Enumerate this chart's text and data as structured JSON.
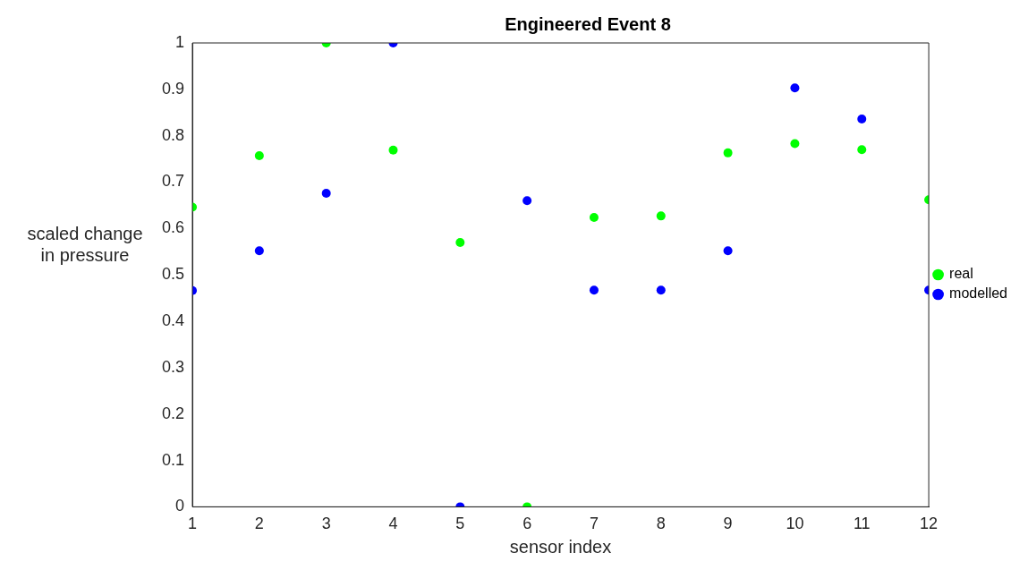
{
  "chart_data": {
    "type": "scatter",
    "title": "Engineered Event 8",
    "xlabel": "sensor index",
    "ylabel": "scaled change in pressure",
    "x": [
      1,
      2,
      3,
      4,
      5,
      6,
      7,
      8,
      9,
      10,
      11,
      12
    ],
    "series": [
      {
        "name": "real",
        "color": "#00ff00",
        "values": [
          0.646,
          0.757,
          1,
          0.769,
          0.57,
          0,
          0.624,
          0.627,
          0.763,
          0.783,
          0.77,
          0.662
        ]
      },
      {
        "name": "modelled",
        "color": "#0000ff",
        "values": [
          0.466,
          0.552,
          0.676,
          1,
          0,
          0.66,
          0.467,
          0.467,
          0.552,
          0.903,
          0.836,
          0.467
        ]
      }
    ],
    "xlim": [
      1,
      12
    ],
    "xticks": [
      1,
      2,
      3,
      4,
      5,
      6,
      7,
      8,
      9,
      10,
      11,
      12
    ],
    "ylim": [
      0,
      1
    ],
    "yticks": [
      0,
      0.1,
      0.2,
      0.3,
      0.4,
      0.5,
      0.6,
      0.7,
      0.8,
      0.9,
      1
    ],
    "grid": false,
    "legend": "right",
    "marker": "circle"
  }
}
